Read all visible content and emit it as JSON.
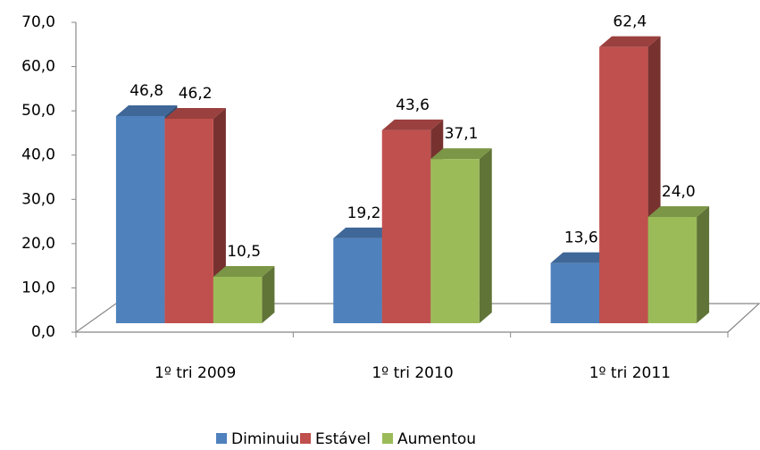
{
  "chart_data": {
    "type": "bar3d",
    "categories": [
      "1º tri 2009",
      "1º tri 2010",
      "1º tri 2011"
    ],
    "series": [
      {
        "name": "Diminuiu",
        "color": "#4f81bd",
        "values": [
          46.8,
          19.2,
          13.6
        ],
        "value_labels": [
          "46,8",
          "19,2",
          "13,6"
        ]
      },
      {
        "name": "Estável",
        "color": "#c0504d",
        "values": [
          46.2,
          43.6,
          62.4
        ],
        "value_labels": [
          "46,2",
          "43,6",
          "62,4"
        ]
      },
      {
        "name": "Aumentou",
        "color": "#9bbb59",
        "values": [
          10.5,
          37.1,
          24.0
        ],
        "value_labels": [
          "10,5",
          "37,1",
          "24,0"
        ]
      }
    ],
    "ylim": [
      0,
      70
    ],
    "yticks": [
      {
        "value": 0,
        "label": "0,0"
      },
      {
        "value": 10,
        "label": "10,0"
      },
      {
        "value": 20,
        "label": "20,0"
      },
      {
        "value": 30,
        "label": "30,0"
      },
      {
        "value": 40,
        "label": "40,0"
      },
      {
        "value": 50,
        "label": "50,0"
      },
      {
        "value": 60,
        "label": "60,0"
      },
      {
        "value": 70,
        "label": "70,0"
      }
    ],
    "legend": "bottom"
  }
}
